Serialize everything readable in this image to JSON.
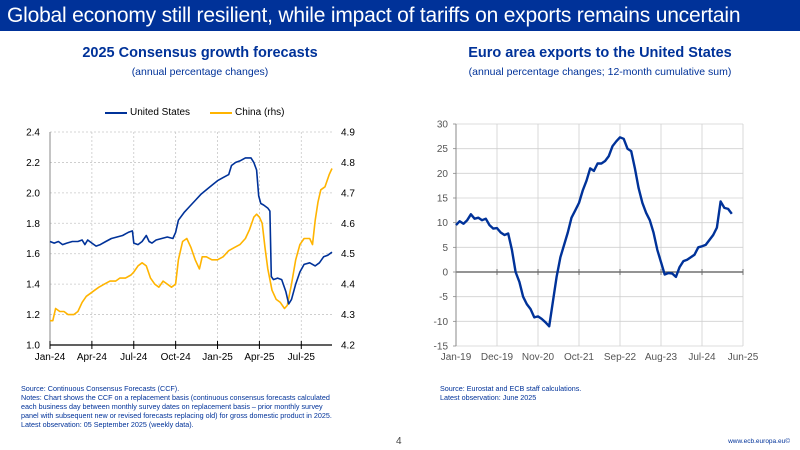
{
  "slide": {
    "title": "Global economy still resilient, while impact of tariffs on exports remains uncertain",
    "page_number": "4",
    "url": "www.ecb.europa.eu©",
    "brand_color": "#003299"
  },
  "left_panel": {
    "title": "2025 Consensus growth forecasts",
    "subtitle": "(annual percentage changes)",
    "source": "Source: Continuous Consensus Forecasts (CCF).",
    "notes": [
      "Notes: Chart shows the CCF on a replacement basis (continuous consensus forecasts calculated",
      "each business day between monthly survey dates on replacement basis – prior monthly survey",
      "panel with subsequent new or revised forecasts replacing old) for gross domestic product in 2025.",
      "Latest observation: 05 September 2025 (weekly data)."
    ]
  },
  "right_panel": {
    "title": "Euro area exports to the United States",
    "subtitle": "(annual percentage changes; 12-month cumulative sum)",
    "source": "Source: Eurostat and ECB staff calculations.",
    "latest": "Latest observation: June 2025"
  },
  "chart_data": [
    {
      "type": "line",
      "title": "2025 Consensus growth forecasts",
      "subtitle": "(annual percentage changes)",
      "xlabel": "",
      "ylabel": "",
      "x_ticks": [
        "Jan-24",
        "Apr-24",
        "Jul-24",
        "Oct-24",
        "Jan-25",
        "Apr-25",
        "Jul-25"
      ],
      "ylim": [
        1.0,
        2.4
      ],
      "y_ticks": [
        "1.0",
        "1.2",
        "1.4",
        "1.6",
        "1.8",
        "2.0",
        "2.2",
        "2.4"
      ],
      "y2lim": [
        4.2,
        4.9
      ],
      "y2_ticks": [
        "4.2",
        "4.3",
        "4.4",
        "4.5",
        "4.6",
        "4.7",
        "4.8",
        "4.9"
      ],
      "grid": true,
      "legend": "top-center",
      "x_range_months": [
        0,
        20.2
      ],
      "series": [
        {
          "name": "United States",
          "axis": "left",
          "color": "#003299",
          "points": [
            [
              0,
              1.68
            ],
            [
              0.3,
              1.67
            ],
            [
              0.6,
              1.68
            ],
            [
              0.9,
              1.66
            ],
            [
              1.2,
              1.67
            ],
            [
              1.6,
              1.68
            ],
            [
              2.0,
              1.68
            ],
            [
              2.3,
              1.69
            ],
            [
              2.5,
              1.66
            ],
            [
              2.7,
              1.69
            ],
            [
              3.0,
              1.67
            ],
            [
              3.3,
              1.65
            ],
            [
              3.6,
              1.66
            ],
            [
              4.0,
              1.68
            ],
            [
              4.4,
              1.7
            ],
            [
              4.8,
              1.71
            ],
            [
              5.2,
              1.72
            ],
            [
              5.6,
              1.74
            ],
            [
              5.9,
              1.75
            ],
            [
              6.0,
              1.67
            ],
            [
              6.3,
              1.66
            ],
            [
              6.6,
              1.68
            ],
            [
              6.9,
              1.72
            ],
            [
              7.1,
              1.68
            ],
            [
              7.3,
              1.67
            ],
            [
              7.6,
              1.69
            ],
            [
              8.0,
              1.7
            ],
            [
              8.4,
              1.71
            ],
            [
              8.8,
              1.7
            ],
            [
              9.0,
              1.74
            ],
            [
              9.2,
              1.82
            ],
            [
              9.6,
              1.87
            ],
            [
              10.0,
              1.91
            ],
            [
              10.4,
              1.95
            ],
            [
              10.8,
              1.99
            ],
            [
              11.2,
              2.02
            ],
            [
              11.6,
              2.05
            ],
            [
              12.0,
              2.08
            ],
            [
              12.4,
              2.1
            ],
            [
              12.8,
              2.12
            ],
            [
              13.0,
              2.18
            ],
            [
              13.3,
              2.2
            ],
            [
              13.6,
              2.21
            ],
            [
              14.0,
              2.23
            ],
            [
              14.4,
              2.23
            ],
            [
              14.6,
              2.2
            ],
            [
              14.8,
              2.15
            ],
            [
              14.95,
              1.98
            ],
            [
              15.1,
              1.93
            ],
            [
              15.3,
              1.92
            ],
            [
              15.6,
              1.9
            ],
            [
              15.75,
              1.88
            ],
            [
              15.85,
              1.45
            ],
            [
              16.0,
              1.43
            ],
            [
              16.3,
              1.44
            ],
            [
              16.6,
              1.43
            ],
            [
              16.9,
              1.35
            ],
            [
              17.1,
              1.27
            ],
            [
              17.3,
              1.3
            ],
            [
              17.6,
              1.4
            ],
            [
              17.9,
              1.48
            ],
            [
              18.2,
              1.53
            ],
            [
              18.6,
              1.54
            ],
            [
              19.0,
              1.52
            ],
            [
              19.3,
              1.54
            ],
            [
              19.6,
              1.58
            ],
            [
              19.9,
              1.59
            ],
            [
              20.2,
              1.61
            ]
          ]
        },
        {
          "name": "China (rhs)",
          "axis": "right",
          "color": "#ffb400",
          "points": [
            [
              0,
              4.28
            ],
            [
              0.2,
              4.28
            ],
            [
              0.4,
              4.32
            ],
            [
              0.7,
              4.31
            ],
            [
              1.0,
              4.31
            ],
            [
              1.3,
              4.3
            ],
            [
              1.7,
              4.3
            ],
            [
              2.0,
              4.31
            ],
            [
              2.3,
              4.34
            ],
            [
              2.6,
              4.36
            ],
            [
              2.9,
              4.37
            ],
            [
              3.2,
              4.38
            ],
            [
              3.5,
              4.39
            ],
            [
              3.9,
              4.4
            ],
            [
              4.3,
              4.41
            ],
            [
              4.7,
              4.41
            ],
            [
              5.0,
              4.42
            ],
            [
              5.4,
              4.42
            ],
            [
              5.8,
              4.43
            ],
            [
              6.0,
              4.44
            ],
            [
              6.3,
              4.46
            ],
            [
              6.6,
              4.47
            ],
            [
              6.9,
              4.46
            ],
            [
              7.2,
              4.42
            ],
            [
              7.5,
              4.4
            ],
            [
              7.8,
              4.39
            ],
            [
              8.1,
              4.41
            ],
            [
              8.4,
              4.4
            ],
            [
              8.7,
              4.39
            ],
            [
              9.0,
              4.4
            ],
            [
              9.2,
              4.48
            ],
            [
              9.5,
              4.54
            ],
            [
              9.8,
              4.55
            ],
            [
              10.1,
              4.52
            ],
            [
              10.4,
              4.48
            ],
            [
              10.7,
              4.45
            ],
            [
              10.9,
              4.49
            ],
            [
              11.2,
              4.49
            ],
            [
              11.6,
              4.48
            ],
            [
              12.0,
              4.48
            ],
            [
              12.4,
              4.49
            ],
            [
              12.8,
              4.51
            ],
            [
              13.2,
              4.52
            ],
            [
              13.6,
              4.53
            ],
            [
              14.0,
              4.55
            ],
            [
              14.3,
              4.58
            ],
            [
              14.6,
              4.62
            ],
            [
              14.8,
              4.63
            ],
            [
              15.0,
              4.62
            ],
            [
              15.2,
              4.6
            ],
            [
              15.4,
              4.52
            ],
            [
              15.6,
              4.45
            ],
            [
              15.9,
              4.38
            ],
            [
              16.2,
              4.35
            ],
            [
              16.5,
              4.34
            ],
            [
              16.8,
              4.32
            ],
            [
              17.0,
              4.33
            ],
            [
              17.3,
              4.4
            ],
            [
              17.6,
              4.48
            ],
            [
              17.9,
              4.53
            ],
            [
              18.2,
              4.55
            ],
            [
              18.6,
              4.55
            ],
            [
              18.8,
              4.53
            ],
            [
              19.0,
              4.61
            ],
            [
              19.2,
              4.67
            ],
            [
              19.4,
              4.71
            ],
            [
              19.7,
              4.72
            ],
            [
              20.0,
              4.76
            ],
            [
              20.2,
              4.78
            ]
          ]
        }
      ]
    },
    {
      "type": "line",
      "title": "Euro area exports to the United States",
      "subtitle": "(annual percentage changes; 12-month cumulative sum)",
      "xlabel": "",
      "ylabel": "",
      "x_ticks": [
        "Jan-19",
        "Dec-19",
        "Nov-20",
        "Oct-21",
        "Sep-22",
        "Aug-23",
        "Jul-24",
        "Jun-25"
      ],
      "ylim": [
        -15,
        30
      ],
      "y_ticks": [
        "-15",
        "-10",
        "-5",
        "0",
        "5",
        "10",
        "15",
        "20",
        "25",
        "30"
      ],
      "grid": true,
      "legend": "none",
      "x_range_months": [
        0,
        77
      ],
      "series": [
        {
          "name": "Euro area exports to the United States",
          "color": "#003299",
          "points": [
            [
              0,
              9.5
            ],
            [
              1,
              10.3
            ],
            [
              2,
              9.8
            ],
            [
              3,
              10.5
            ],
            [
              4,
              11.7
            ],
            [
              5,
              10.8
            ],
            [
              6,
              11.0
            ],
            [
              7,
              10.5
            ],
            [
              8,
              10.8
            ],
            [
              9,
              9.5
            ],
            [
              10,
              8.8
            ],
            [
              11,
              8.9
            ],
            [
              12,
              8.0
            ],
            [
              13,
              7.5
            ],
            [
              14,
              7.8
            ],
            [
              15,
              4.5
            ],
            [
              16,
              0
            ],
            [
              17,
              -2.0
            ],
            [
              18,
              -5.0
            ],
            [
              19,
              -6.5
            ],
            [
              20,
              -7.5
            ],
            [
              21,
              -9.2
            ],
            [
              22,
              -9.0
            ],
            [
              23,
              -9.5
            ],
            [
              24,
              -10.2
            ],
            [
              25,
              -11.0
            ],
            [
              26,
              -6.0
            ],
            [
              27,
              -1.0
            ],
            [
              28,
              3.0
            ],
            [
              29,
              5.5
            ],
            [
              30,
              8.0
            ],
            [
              31,
              11.0
            ],
            [
              32,
              12.5
            ],
            [
              33,
              14.0
            ],
            [
              34,
              16.5
            ],
            [
              35,
              18.5
            ],
            [
              36,
              21.0
            ],
            [
              37,
              20.5
            ],
            [
              38,
              22.0
            ],
            [
              39,
              22.0
            ],
            [
              40,
              22.5
            ],
            [
              41,
              23.5
            ],
            [
              42,
              25.5
            ],
            [
              43,
              26.5
            ],
            [
              44,
              27.3
            ],
            [
              45,
              27.0
            ],
            [
              46,
              25.0
            ],
            [
              47,
              24.5
            ],
            [
              48,
              21.0
            ],
            [
              49,
              17.0
            ],
            [
              50,
              14.0
            ],
            [
              51,
              12.0
            ],
            [
              52,
              10.5
            ],
            [
              53,
              8.0
            ],
            [
              54,
              4.5
            ],
            [
              55,
              2.0
            ],
            [
              56,
              -0.5
            ],
            [
              57,
              -0.2
            ],
            [
              58,
              -0.3
            ],
            [
              59,
              -1.0
            ],
            [
              60,
              1.0
            ],
            [
              61,
              2.2
            ],
            [
              62,
              2.5
            ],
            [
              63,
              3.0
            ],
            [
              64,
              3.5
            ],
            [
              65,
              5.0
            ],
            [
              66,
              5.2
            ],
            [
              67,
              5.5
            ],
            [
              68,
              6.5
            ],
            [
              69,
              7.5
            ],
            [
              70,
              9.0
            ],
            [
              71,
              14.3
            ],
            [
              72,
              13.0
            ],
            [
              73,
              12.8
            ],
            [
              74,
              11.8
            ]
          ]
        }
      ]
    }
  ]
}
